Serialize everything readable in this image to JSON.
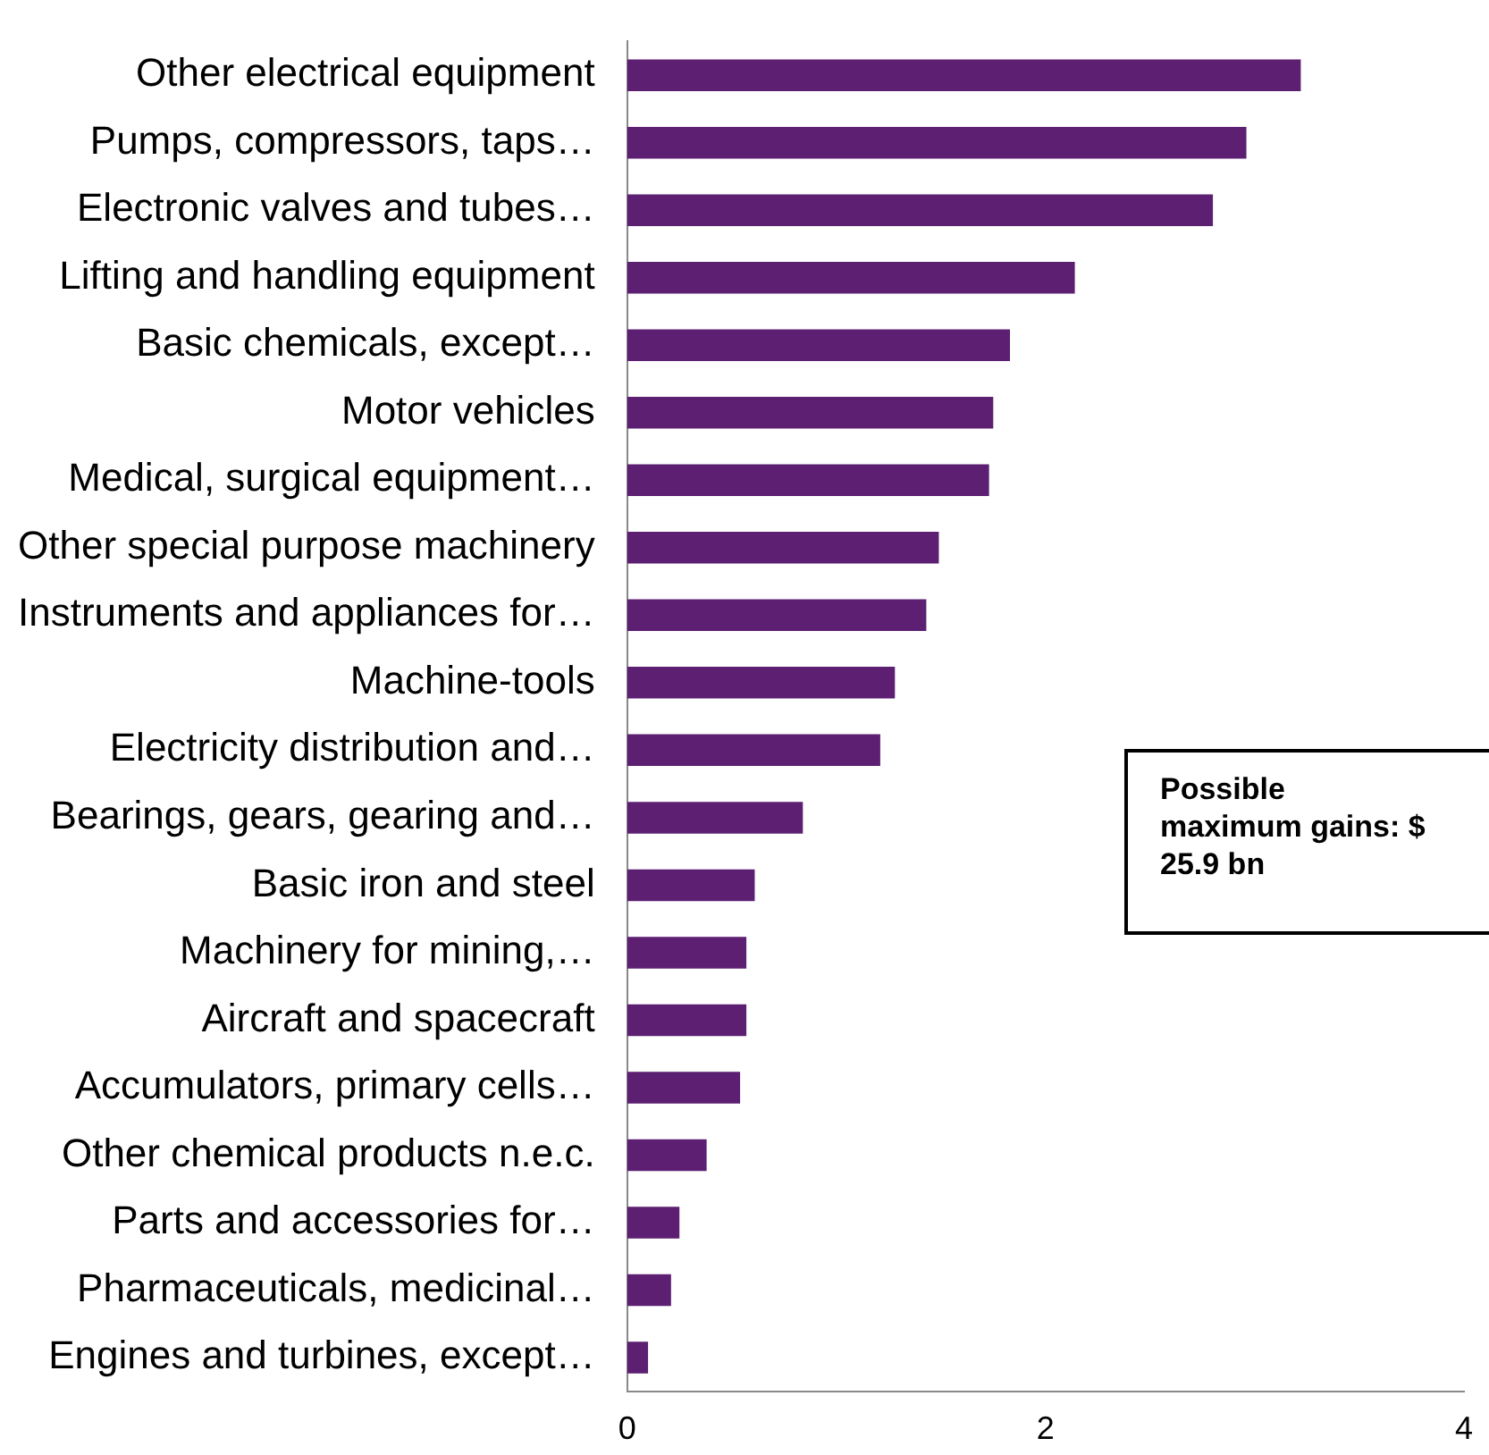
{
  "chart_data": {
    "type": "bar",
    "orientation": "horizontal",
    "categories": [
      "Other electrical equipment",
      "Pumps, compressors, taps…",
      "Electronic valves and tubes…",
      "Lifting and handling equipment",
      "Basic chemicals, except…",
      "Motor vehicles",
      "Medical, surgical equipment…",
      "Other special purpose machinery",
      "Instruments and appliances for…",
      "Machine-tools",
      "Electricity distribution and…",
      "Bearings, gears, gearing and…",
      "Basic iron and steel",
      "Machinery for mining,…",
      "Aircraft and spacecraft",
      "Accumulators, primary cells…",
      "Other chemical products n.e.c.",
      "Parts and accessories for…",
      "Pharmaceuticals, medicinal…",
      "Engines and turbines, except…"
    ],
    "values": [
      3.22,
      2.96,
      2.8,
      2.14,
      1.83,
      1.75,
      1.73,
      1.49,
      1.43,
      1.28,
      1.21,
      0.84,
      0.61,
      0.57,
      0.57,
      0.54,
      0.38,
      0.25,
      0.21,
      0.1
    ],
    "color": "#5c1f72",
    "xlim": [
      0,
      4
    ],
    "xticks": [
      0,
      2,
      4
    ],
    "grid": false,
    "legend": false,
    "annotations": [
      "Possible maximum gains: $ 25.9 bn"
    ]
  }
}
